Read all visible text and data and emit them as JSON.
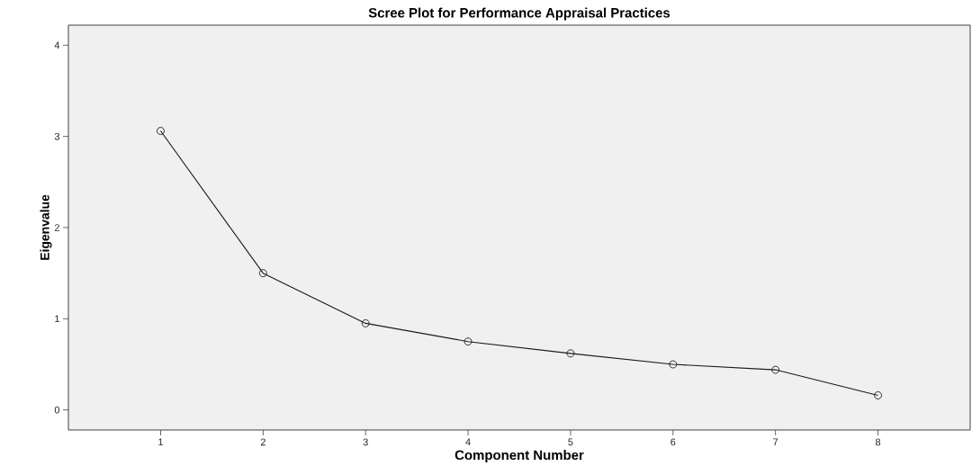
{
  "chart_data": {
    "type": "line",
    "title": "Scree Plot for Performance Appraisal Practices",
    "xlabel": "Component Number",
    "ylabel": "Eigenvalue",
    "x": [
      1,
      2,
      3,
      4,
      5,
      6,
      7,
      8
    ],
    "values": [
      3.06,
      1.5,
      0.95,
      0.75,
      0.62,
      0.5,
      0.44,
      0.16
    ],
    "color": "#1a1a1a",
    "marker": "circle",
    "line_style": "solid",
    "xlim": [
      0.1,
      8.9
    ],
    "ylim": [
      -0.22,
      4.22
    ],
    "xticks": [
      1,
      2,
      3,
      4,
      5,
      6,
      7,
      8
    ],
    "yticks": [
      0,
      1,
      2,
      3,
      4
    ]
  }
}
